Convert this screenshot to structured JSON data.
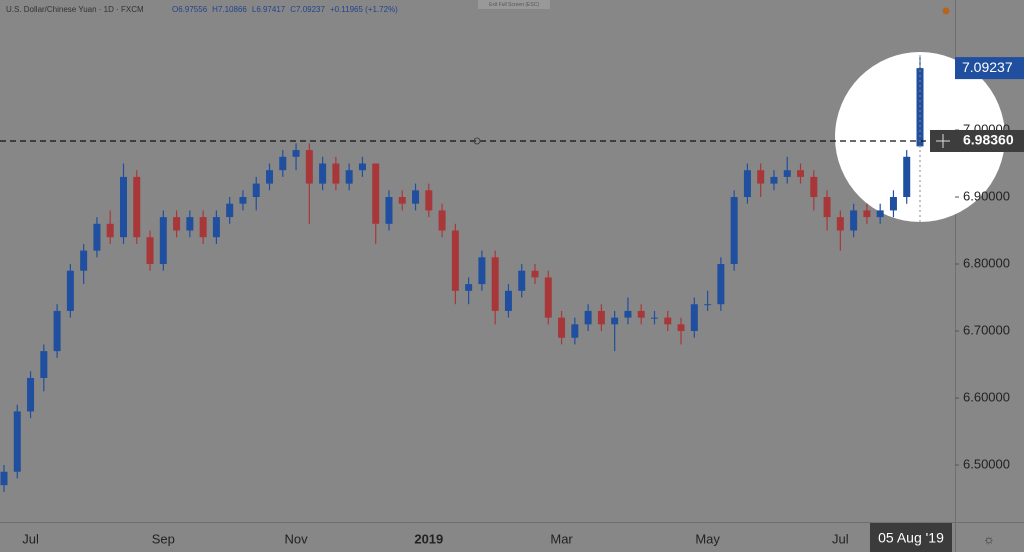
{
  "chart_data": {
    "type": "candlestick",
    "title": "U.S. Dollar/Chinese Yuan · 1D · FXCM",
    "ohlc_labels": [
      "O",
      "H",
      "L",
      "C"
    ],
    "change_label": "+0.11965 (+1.72%)",
    "button_label": "Exit Full Screen (ESC)",
    "up_color": "#1f4f9e",
    "down_color": "#a8373a",
    "ylim": [
      6.415,
      7.194
    ],
    "yticks": [
      {
        "value": 6.5,
        "label": "6.50000"
      },
      {
        "value": 6.6,
        "label": "6.60000"
      },
      {
        "value": 6.7,
        "label": "6.70000"
      },
      {
        "value": 6.8,
        "label": "6.80000"
      },
      {
        "value": 6.9,
        "label": "6.90000"
      },
      {
        "value": 7.0,
        "label": "7.00000"
      }
    ],
    "crosshair_price": {
      "value": 6.9836,
      "label": "6.98360"
    },
    "categories": [
      null,
      null,
      "Jul",
      null,
      null,
      null,
      null,
      null,
      null,
      null,
      null,
      null,
      "Sep",
      null,
      null,
      null,
      null,
      null,
      null,
      null,
      null,
      null,
      "Nov",
      null,
      null,
      null,
      null,
      null,
      null,
      null,
      null,
      null,
      "2019",
      null,
      null,
      null,
      null,
      null,
      null,
      null,
      null,
      null,
      "Mar",
      null,
      null,
      null,
      null,
      null,
      null,
      null,
      null,
      null,
      null,
      "May",
      null,
      null,
      null,
      null,
      null,
      null,
      null,
      null,
      null,
      "Jul",
      null,
      null,
      null,
      null,
      null,
      "05 Aug '19"
    ],
    "candles": [
      [
        6.47,
        6.5,
        6.46,
        6.49
      ],
      [
        6.49,
        6.59,
        6.48,
        6.58
      ],
      [
        6.58,
        6.64,
        6.57,
        6.63
      ],
      [
        6.63,
        6.68,
        6.61,
        6.67
      ],
      [
        6.67,
        6.74,
        6.66,
        6.73
      ],
      [
        6.73,
        6.8,
        6.72,
        6.79
      ],
      [
        6.79,
        6.83,
        6.77,
        6.82
      ],
      [
        6.82,
        6.87,
        6.81,
        6.86
      ],
      [
        6.86,
        6.88,
        6.83,
        6.84
      ],
      [
        6.84,
        6.95,
        6.83,
        6.93
      ],
      [
        6.93,
        6.94,
        6.83,
        6.84
      ],
      [
        6.84,
        6.85,
        6.79,
        6.8
      ],
      [
        6.8,
        6.88,
        6.79,
        6.87
      ],
      [
        6.87,
        6.88,
        6.84,
        6.85
      ],
      [
        6.85,
        6.88,
        6.84,
        6.87
      ],
      [
        6.87,
        6.88,
        6.83,
        6.84
      ],
      [
        6.84,
        6.88,
        6.83,
        6.87
      ],
      [
        6.87,
        6.9,
        6.86,
        6.89
      ],
      [
        6.89,
        6.91,
        6.88,
        6.9
      ],
      [
        6.9,
        6.93,
        6.88,
        6.92
      ],
      [
        6.92,
        6.95,
        6.91,
        6.94
      ],
      [
        6.94,
        6.97,
        6.93,
        6.96
      ],
      [
        6.96,
        6.98,
        6.94,
        6.97
      ],
      [
        6.97,
        6.98,
        6.86,
        6.92
      ],
      [
        6.92,
        6.96,
        6.91,
        6.95
      ],
      [
        6.95,
        6.96,
        6.91,
        6.92
      ],
      [
        6.92,
        6.95,
        6.91,
        6.94
      ],
      [
        6.94,
        6.96,
        6.93,
        6.95
      ],
      [
        6.95,
        6.95,
        6.83,
        6.86
      ],
      [
        6.86,
        6.91,
        6.85,
        6.9
      ],
      [
        6.9,
        6.91,
        6.88,
        6.89
      ],
      [
        6.89,
        6.92,
        6.88,
        6.91
      ],
      [
        6.91,
        6.92,
        6.87,
        6.88
      ],
      [
        6.88,
        6.89,
        6.84,
        6.85
      ],
      [
        6.85,
        6.86,
        6.74,
        6.76
      ],
      [
        6.76,
        6.78,
        6.74,
        6.77
      ],
      [
        6.77,
        6.82,
        6.76,
        6.81
      ],
      [
        6.81,
        6.82,
        6.71,
        6.73
      ],
      [
        6.73,
        6.77,
        6.72,
        6.76
      ],
      [
        6.76,
        6.8,
        6.75,
        6.79
      ],
      [
        6.79,
        6.8,
        6.77,
        6.78
      ],
      [
        6.78,
        6.79,
        6.71,
        6.72
      ],
      [
        6.72,
        6.73,
        6.68,
        6.69
      ],
      [
        6.69,
        6.72,
        6.68,
        6.71
      ],
      [
        6.71,
        6.74,
        6.7,
        6.73
      ],
      [
        6.73,
        6.74,
        6.7,
        6.71
      ],
      [
        6.71,
        6.73,
        6.67,
        6.72
      ],
      [
        6.72,
        6.75,
        6.71,
        6.73
      ],
      [
        6.73,
        6.74,
        6.71,
        6.72
      ],
      [
        6.72,
        6.73,
        6.71,
        6.72
      ],
      [
        6.72,
        6.73,
        6.7,
        6.71
      ],
      [
        6.71,
        6.72,
        6.68,
        6.7
      ],
      [
        6.7,
        6.75,
        6.69,
        6.74
      ],
      [
        6.74,
        6.76,
        6.73,
        6.74
      ],
      [
        6.74,
        6.81,
        6.73,
        6.8
      ],
      [
        6.8,
        6.91,
        6.79,
        6.9
      ],
      [
        6.9,
        6.95,
        6.89,
        6.94
      ],
      [
        6.94,
        6.95,
        6.9,
        6.92
      ],
      [
        6.92,
        6.94,
        6.91,
        6.93
      ],
      [
        6.93,
        6.96,
        6.92,
        6.94
      ],
      [
        6.94,
        6.95,
        6.92,
        6.93
      ],
      [
        6.93,
        6.94,
        6.88,
        6.9
      ],
      [
        6.9,
        6.91,
        6.85,
        6.87
      ],
      [
        6.87,
        6.88,
        6.82,
        6.85
      ],
      [
        6.85,
        6.89,
        6.84,
        6.88
      ],
      [
        6.88,
        6.89,
        6.86,
        6.87
      ],
      [
        6.87,
        6.89,
        6.86,
        6.88
      ],
      [
        6.88,
        6.91,
        6.87,
        6.9
      ],
      [
        6.9,
        6.97,
        6.89,
        6.96
      ],
      [
        6.97556,
        7.10866,
        6.97417,
        7.09237
      ]
    ]
  }
}
